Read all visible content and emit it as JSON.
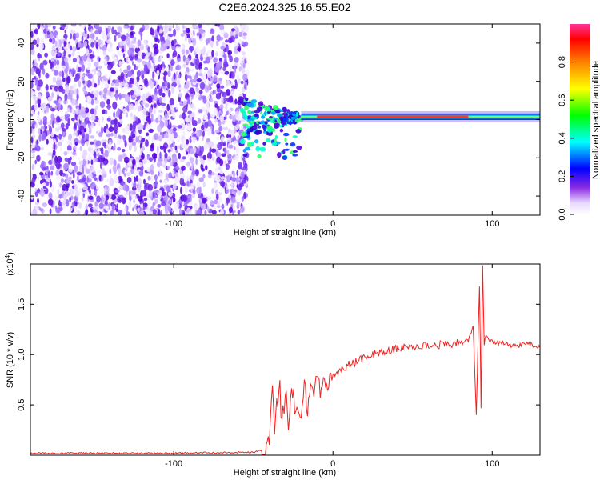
{
  "title": "C2E6.2024.325.16.55.E02",
  "chart_data": [
    {
      "type": "heatmap",
      "xlabel": "Height of straight line (km)",
      "ylabel": "Frequency (Hz)",
      "xlim": [
        -190,
        130
      ],
      "ylim": [
        -50,
        50
      ],
      "x_ticks": [
        -100,
        0,
        100
      ],
      "x_tick_labels": [
        "-100",
        "0",
        "100"
      ],
      "y_ticks": [
        -40,
        -20,
        0,
        20,
        40
      ],
      "y_tick_labels": [
        "-40",
        "-20",
        "0",
        "20",
        "40"
      ],
      "colorbar": {
        "label": "Normalized spectral amplitude",
        "range": [
          0.0,
          1.0
        ],
        "ticks": [
          0.0,
          0.2,
          0.4,
          0.6,
          0.8
        ],
        "tick_labels": [
          "0.0",
          "0.2",
          "0.4",
          "0.6",
          "0.8"
        ]
      },
      "features": {
        "noise_region_x": [
          -190,
          -58
        ],
        "transition_x": [
          -58,
          -20
        ],
        "narrowband_frequency_hz": 1.5,
        "narrowband_x": [
          -20,
          130
        ],
        "peak_band_x": [
          -10,
          85
        ]
      }
    },
    {
      "type": "line",
      "xlabel": "Height of straight line (km)",
      "ylabel": "SNR (10 * v/v)",
      "y_multiplier_label": "(x10",
      "y_multiplier_exp": "4",
      "y_multiplier_close": ")",
      "xlim": [
        -190,
        130
      ],
      "ylim": [
        0,
        1.9
      ],
      "x_ticks": [
        -100,
        0,
        100
      ],
      "x_tick_labels": [
        "-100",
        "0",
        "100"
      ],
      "y_ticks": [
        0.5,
        1.0,
        1.5
      ],
      "y_tick_labels": [
        "0.5",
        "1.0",
        "1.5"
      ],
      "color": "#ee2222",
      "series": [
        {
          "x": [
            -190,
            -100,
            -50,
            -45,
            -40,
            -38,
            -36,
            -34,
            -32,
            -30,
            -28,
            -26,
            -24,
            -22,
            -20,
            -18,
            -16,
            -14,
            -12,
            -10,
            -8,
            -6,
            -4,
            -2,
            0,
            5,
            10,
            15,
            20,
            25,
            30,
            35,
            40,
            50,
            60,
            70,
            80,
            85,
            88,
            90,
            92,
            93,
            94,
            95,
            96,
            100,
            110,
            115,
            120,
            125,
            130
          ],
          "y": [
            0.02,
            0.02,
            0.03,
            0.05,
            0.12,
            0.55,
            0.3,
            0.7,
            0.35,
            0.6,
            0.3,
            0.8,
            0.4,
            0.55,
            0.45,
            0.75,
            0.5,
            0.7,
            0.55,
            0.85,
            0.6,
            0.8,
            0.65,
            0.78,
            0.78,
            0.85,
            0.9,
            0.93,
            0.97,
            1.0,
            1.02,
            1.04,
            1.06,
            1.08,
            1.09,
            1.1,
            1.12,
            1.13,
            1.3,
            0.4,
            1.7,
            0.45,
            1.9,
            1.1,
            1.2,
            1.12,
            1.1,
            1.08,
            1.12,
            1.1,
            1.07
          ]
        }
      ]
    }
  ]
}
